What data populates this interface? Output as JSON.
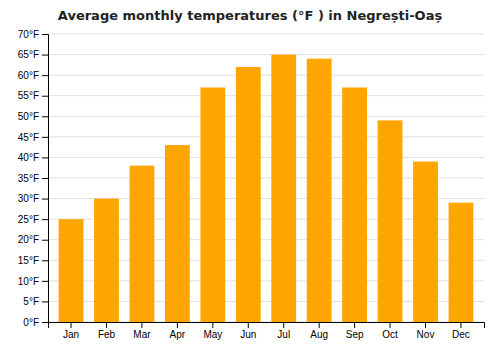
{
  "chart_data": {
    "type": "bar",
    "title": "Average monthly temperatures (°F ) in Negrești-Oaș",
    "categories": [
      "Jan",
      "Feb",
      "Mar",
      "Apr",
      "May",
      "Jun",
      "Jul",
      "Aug",
      "Sep",
      "Oct",
      "Nov",
      "Dec"
    ],
    "values": [
      25.0,
      30.0,
      38.0,
      43.0,
      57.0,
      62.0,
      65.0,
      64.0,
      57.0,
      49.0,
      39.0,
      29.0
    ],
    "color": "#FFA500",
    "ylim": [
      0,
      70
    ],
    "yticks": [
      {
        "value": 0,
        "label": "0°F"
      },
      {
        "value": 5,
        "label": "5°F"
      },
      {
        "value": 10,
        "label": "10°F"
      },
      {
        "value": 15,
        "label": "15°F"
      },
      {
        "value": 20,
        "label": "20°F"
      },
      {
        "value": 25,
        "label": "25°F"
      },
      {
        "value": 30,
        "label": "30°F"
      },
      {
        "value": 35,
        "label": "35°F"
      },
      {
        "value": 40,
        "label": "40°F"
      },
      {
        "value": 45,
        "label": "45°F"
      },
      {
        "value": 50,
        "label": "50°F"
      },
      {
        "value": 55,
        "label": "55°F"
      },
      {
        "value": 60,
        "label": "60°F"
      },
      {
        "value": 65,
        "label": "65°F"
      },
      {
        "value": 70,
        "label": "70°F"
      }
    ],
    "grid": true
  }
}
